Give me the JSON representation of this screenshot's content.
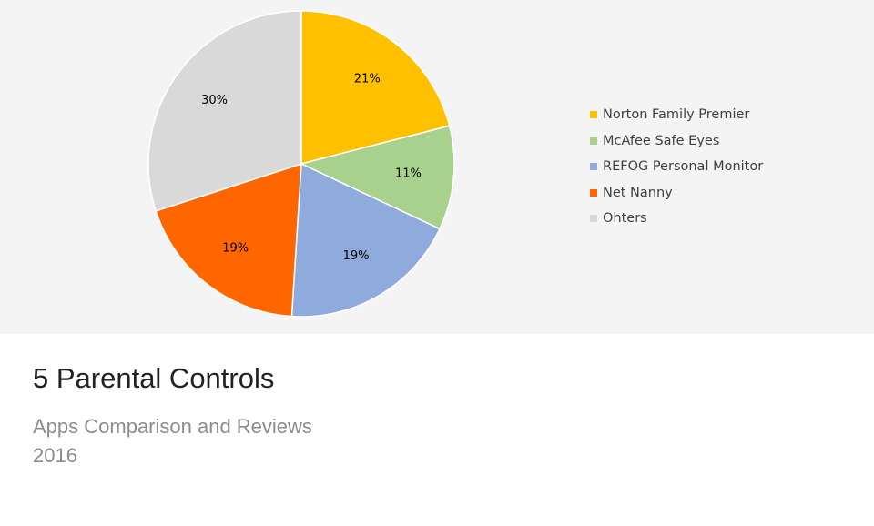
{
  "card": {
    "title": "5 Parental Controls",
    "subtitle": "Apps Comparison and Reviews",
    "year": "2016"
  },
  "chart_data": {
    "type": "pie",
    "title": "",
    "legend_position": "right",
    "slices": [
      {
        "name": "Norton Family Premier",
        "value": 21,
        "label": "21%",
        "color": "#ffc000"
      },
      {
        "name": "McAfee Safe Eyes",
        "value": 11,
        "label": "11%",
        "color": "#a9d18e"
      },
      {
        "name": "REFOG Personal Monitor",
        "value": 19,
        "label": "19%",
        "color": "#8faadc"
      },
      {
        "name": "Net Nanny",
        "value": 19,
        "label": "19%",
        "color": "#ff6600"
      },
      {
        "name": "Ohters",
        "value": 30,
        "label": "30%",
        "color": "#d9d9d9"
      }
    ]
  }
}
